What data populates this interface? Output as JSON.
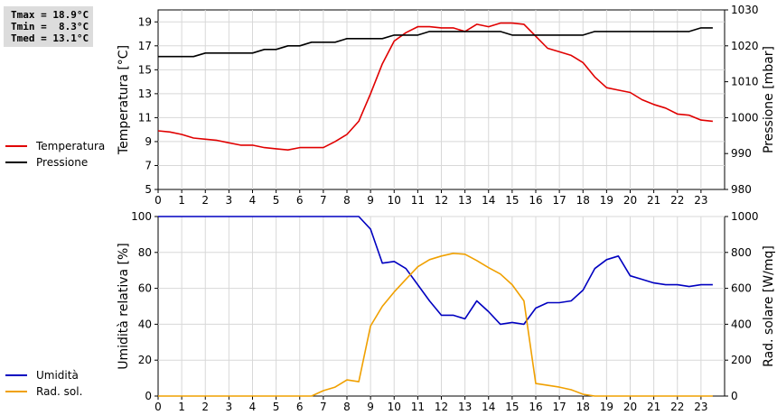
{
  "stats": {
    "tmax": "Tmax = 18.9°C",
    "tmin": "Tmin =  8.3°C",
    "tmed": "Tmed = 13.1°C"
  },
  "legend_top": [
    {
      "label": "Temperatura",
      "color": "#e00000"
    },
    {
      "label": "Pressione",
      "color": "#000000"
    }
  ],
  "legend_bottom": [
    {
      "label": "Umidità",
      "color": "#0000c0"
    },
    {
      "label": "Rad. sol.",
      "color": "#f0a000"
    }
  ],
  "chart_data": [
    {
      "type": "line",
      "x_ticks": [
        "0",
        "1",
        "2",
        "3",
        "4",
        "5",
        "6",
        "7",
        "8",
        "9",
        "10",
        "11",
        "12",
        "13",
        "14",
        "15",
        "16",
        "17",
        "18",
        "19",
        "20",
        "21",
        "22",
        "23"
      ],
      "xlim": [
        0,
        24
      ],
      "ylabel": "Temperatura [°C]",
      "ylim": [
        5,
        20
      ],
      "y_ticks": [
        "5",
        "7",
        "9",
        "11",
        "13",
        "15",
        "17",
        "19"
      ],
      "y2label": "Pressione [mbar]",
      "y2lim": [
        980,
        1030
      ],
      "y2_ticks": [
        "980",
        "990",
        "1000",
        "1010",
        "1020",
        "1030"
      ],
      "grid": true,
      "series": [
        {
          "name": "Temperatura",
          "axis": "left",
          "color": "#e00000",
          "x": [
            0,
            0.5,
            1,
            1.5,
            2,
            2.5,
            3,
            3.5,
            4,
            4.5,
            5,
            5.5,
            6,
            6.5,
            7,
            7.5,
            8,
            8.5,
            9,
            9.5,
            10,
            10.5,
            11,
            11.5,
            12,
            12.5,
            13,
            13.5,
            14,
            14.5,
            15,
            15.5,
            16,
            16.5,
            17,
            17.5,
            18,
            18.5,
            19,
            19.5,
            20,
            20.5,
            21,
            21.5,
            22,
            22.5,
            23,
            23.5
          ],
          "values": [
            9.9,
            9.8,
            9.6,
            9.3,
            9.2,
            9.1,
            8.9,
            8.7,
            8.7,
            8.5,
            8.4,
            8.3,
            8.5,
            8.5,
            8.5,
            9,
            9.6,
            10.7,
            13,
            15.5,
            17.4,
            18.1,
            18.6,
            18.6,
            18.5,
            18.5,
            18.2,
            18.8,
            18.6,
            18.9,
            18.9,
            18.8,
            17.8,
            16.8,
            16.5,
            16.2,
            15.6,
            14.4,
            13.5,
            13.3,
            13.1,
            12.5,
            12.1,
            11.8,
            11.3,
            11.2,
            10.8,
            10.7
          ]
        },
        {
          "name": "Pressione",
          "axis": "right",
          "color": "#000000",
          "x": [
            0,
            0.5,
            1,
            1.5,
            2,
            2.5,
            3,
            3.5,
            4,
            4.5,
            5,
            5.5,
            6,
            6.5,
            7,
            7.5,
            8,
            8.5,
            9,
            9.5,
            10,
            10.5,
            11,
            11.5,
            12,
            12.5,
            13,
            13.5,
            14,
            14.5,
            15,
            15.5,
            16,
            16.5,
            17,
            17.5,
            18,
            18.5,
            19,
            19.5,
            20,
            20.5,
            21,
            21.5,
            22,
            22.5,
            23,
            23.5
          ],
          "values": [
            1017,
            1017,
            1017,
            1017,
            1018,
            1018,
            1018,
            1018,
            1018,
            1019,
            1019,
            1020,
            1020,
            1021,
            1021,
            1021,
            1022,
            1022,
            1022,
            1022,
            1023,
            1023,
            1023,
            1024,
            1024,
            1024,
            1024,
            1024,
            1024,
            1024,
            1023,
            1023,
            1023,
            1023,
            1023,
            1023,
            1023,
            1024,
            1024,
            1024,
            1024,
            1024,
            1024,
            1024,
            1024,
            1024,
            1025,
            1025
          ]
        }
      ]
    },
    {
      "type": "line",
      "x_ticks": [
        "0",
        "1",
        "2",
        "3",
        "4",
        "5",
        "6",
        "7",
        "8",
        "9",
        "10",
        "11",
        "12",
        "13",
        "14",
        "15",
        "16",
        "17",
        "18",
        "19",
        "20",
        "21",
        "22",
        "23"
      ],
      "xlim": [
        0,
        24
      ],
      "ylabel": "Umidità relativa [%]",
      "ylim": [
        0,
        100
      ],
      "y_ticks": [
        "0",
        "20",
        "40",
        "60",
        "80",
        "100"
      ],
      "y2label": "Rad. solare [W/mq]",
      "y2lim": [
        0,
        1000
      ],
      "y2_ticks": [
        "0",
        "200",
        "400",
        "600",
        "800",
        "1000"
      ],
      "grid": true,
      "series": [
        {
          "name": "Umidità",
          "axis": "left",
          "color": "#0000c0",
          "x": [
            0,
            8.5,
            9,
            9.5,
            10,
            10.5,
            11,
            11.5,
            12,
            12.5,
            13,
            13.5,
            14,
            14.5,
            15,
            15.5,
            16,
            16.5,
            17,
            17.5,
            18,
            18.5,
            19,
            19.5,
            20,
            20.5,
            21,
            21.5,
            22,
            22.5,
            23,
            23.5
          ],
          "values": [
            100,
            100,
            93,
            74,
            75,
            71,
            62,
            53,
            45,
            45,
            43,
            53,
            47,
            40,
            41,
            40,
            49,
            52,
            52,
            53,
            59,
            71,
            76,
            78,
            67,
            65,
            63,
            62,
            62,
            61,
            62,
            62
          ]
        },
        {
          "name": "Rad. sol.",
          "axis": "right",
          "color": "#f0a000",
          "x": [
            0,
            6.5,
            7,
            7.5,
            8,
            8.5,
            9,
            9.5,
            10,
            10.5,
            11,
            11.5,
            12,
            12.5,
            13,
            13.5,
            14,
            14.5,
            15,
            15.5,
            16,
            16.5,
            17,
            17.5,
            18,
            18.5,
            23.5
          ],
          "values": [
            0,
            0,
            30,
            50,
            90,
            80,
            390,
            500,
            580,
            650,
            720,
            760,
            780,
            795,
            790,
            755,
            715,
            680,
            620,
            530,
            70,
            60,
            50,
            35,
            10,
            0,
            0
          ]
        }
      ]
    }
  ]
}
